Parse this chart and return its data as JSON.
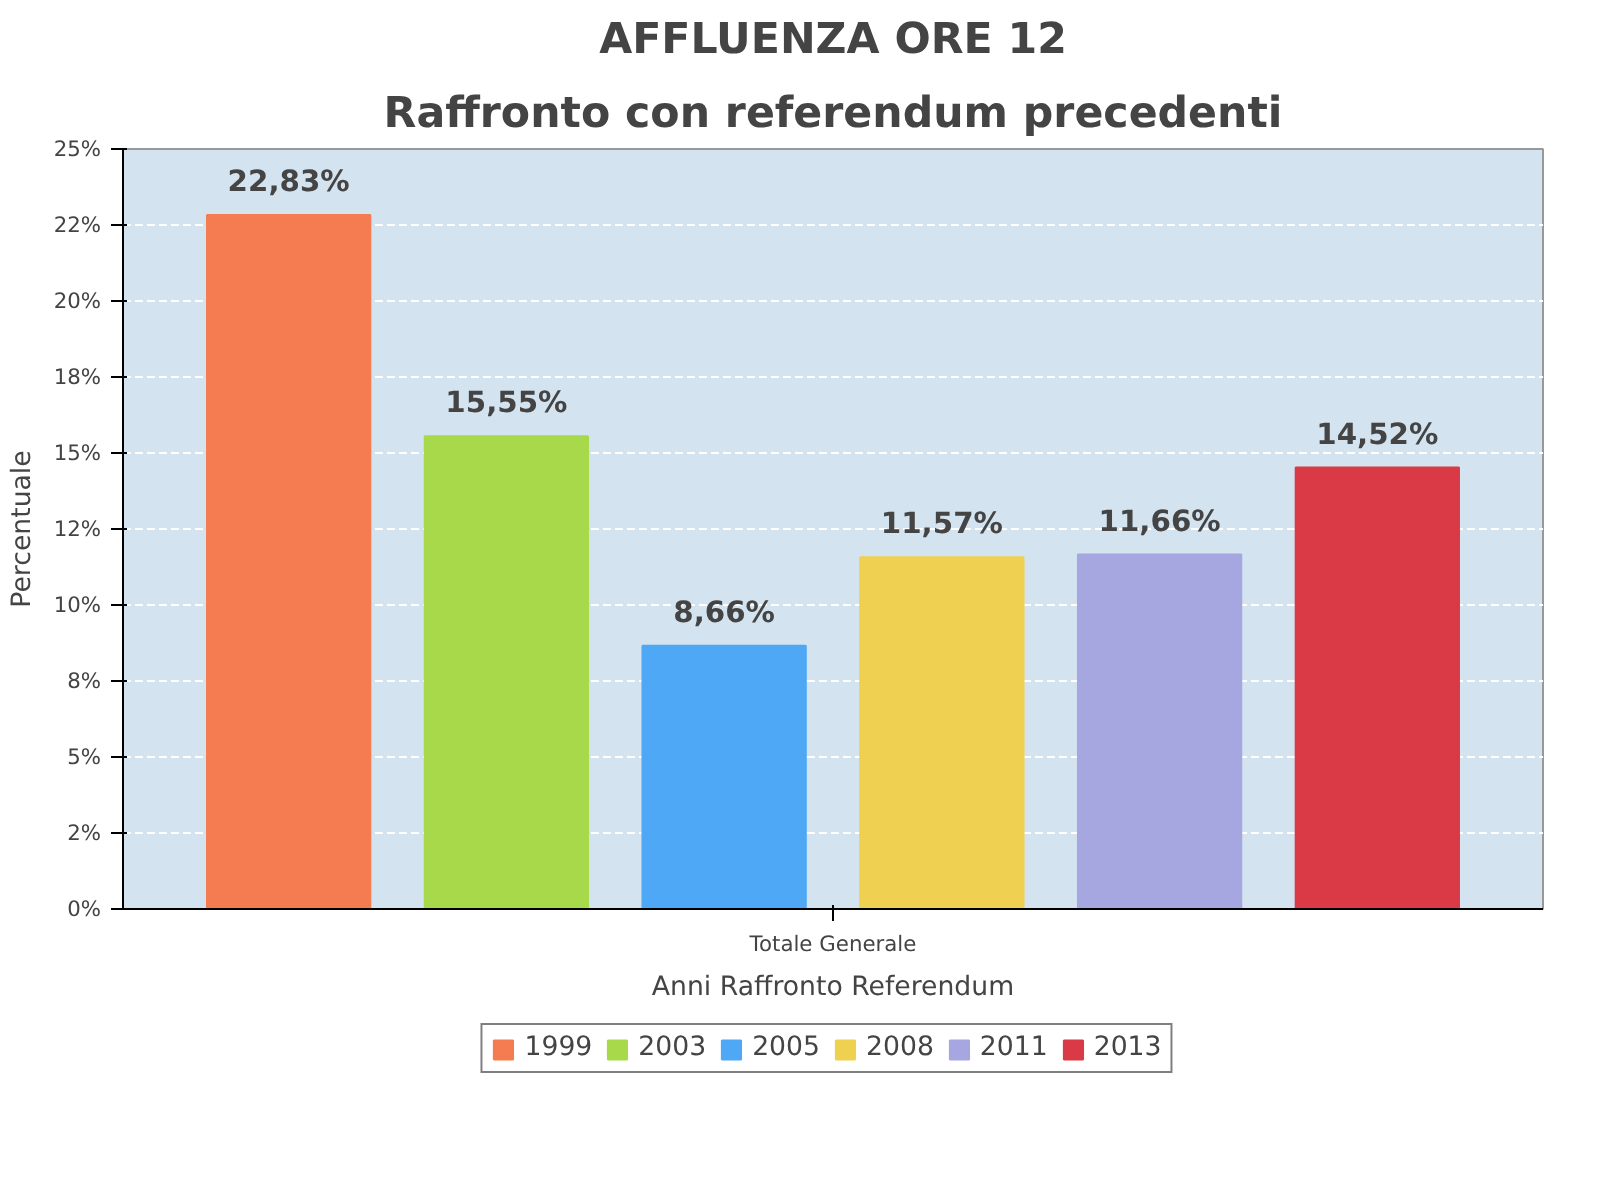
{
  "chart_data": {
    "type": "bar",
    "title": "AFFLUENZA ORE 12",
    "subtitle": "Raffronto con referendum precedenti",
    "xlabel": "Anni Raffronto Referendum",
    "ylabel": "Percentuale",
    "categories": [
      "Totale Generale"
    ],
    "series": [
      {
        "name": "1999",
        "color": "#f47c50",
        "values": [
          22.83
        ],
        "value_labels": [
          "22,83%"
        ]
      },
      {
        "name": "2003",
        "color": "#a8d94a",
        "values": [
          15.55
        ],
        "value_labels": [
          "15,55%"
        ]
      },
      {
        "name": "2005",
        "color": "#4ea8f5",
        "values": [
          8.66
        ],
        "value_labels": [
          "8,66%"
        ]
      },
      {
        "name": "2008",
        "color": "#f0d050",
        "values": [
          11.57
        ],
        "value_labels": [
          "11,57%"
        ]
      },
      {
        "name": "2011",
        "color": "#a6a6e0",
        "values": [
          11.66
        ],
        "value_labels": [
          "11,66%"
        ]
      },
      {
        "name": "2013",
        "color": "#d93a45",
        "values": [
          14.52
        ],
        "value_labels": [
          "14,52%"
        ]
      }
    ],
    "ylim": [
      0,
      25
    ],
    "yticks": [
      {
        "value": 0,
        "label": "0%"
      },
      {
        "value": 2.5,
        "label": "2%"
      },
      {
        "value": 5,
        "label": "5%"
      },
      {
        "value": 7.5,
        "label": "8%"
      },
      {
        "value": 10,
        "label": "10%"
      },
      {
        "value": 12.5,
        "label": "12%"
      },
      {
        "value": 15,
        "label": "15%"
      },
      {
        "value": 17.5,
        "label": "18%"
      },
      {
        "value": 20,
        "label": "20%"
      },
      {
        "value": 22.5,
        "label": "22%"
      },
      {
        "value": 25,
        "label": "25%"
      }
    ],
    "grid": "y",
    "legend": "bottom"
  }
}
